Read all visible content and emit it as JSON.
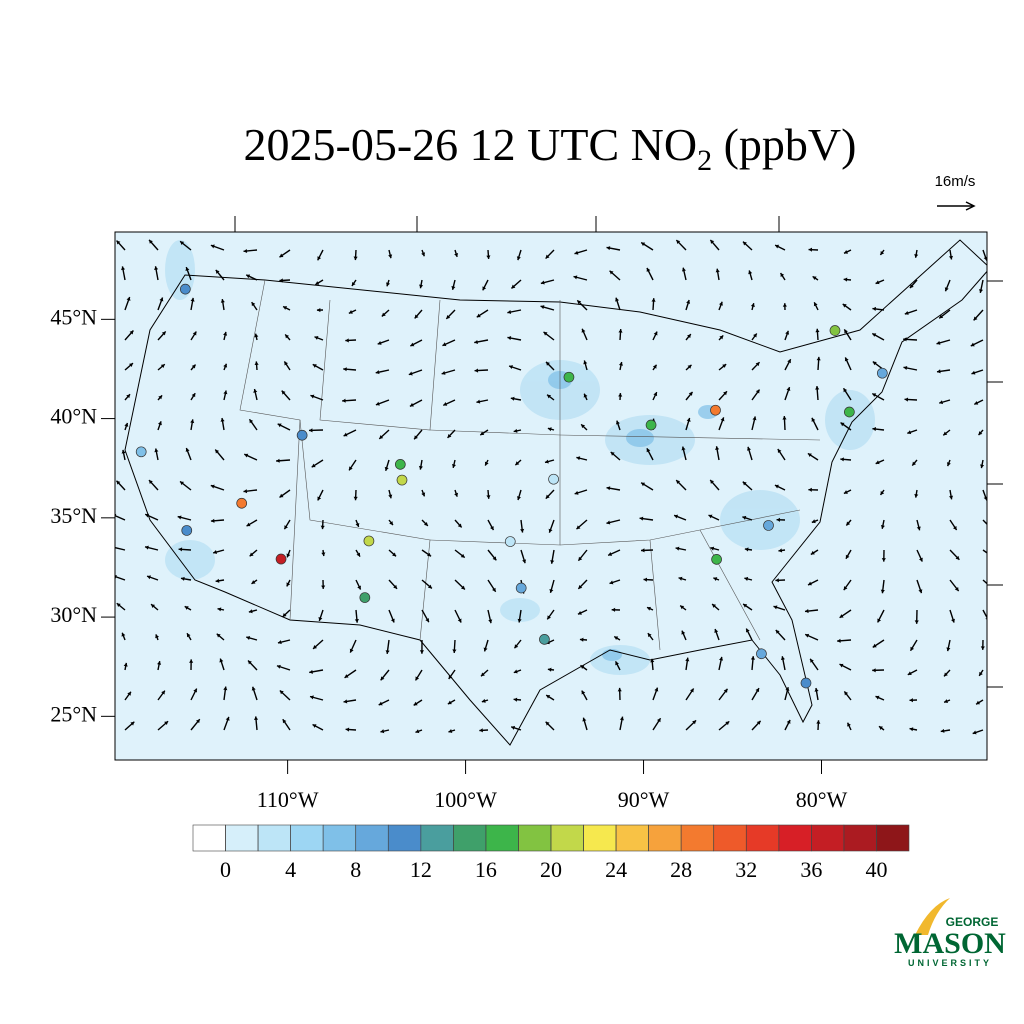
{
  "map": {
    "title": "2025-05-26 12 UTC NO",
    "title_subscript": "2",
    "title_suffix": "(ppbV)",
    "wind_reference": "16m/s",
    "xlim": [
      -119.7,
      -70.7
    ],
    "ylim": [
      22.8,
      49.4
    ],
    "xticks": [
      {
        "value": -110,
        "label": "110°W"
      },
      {
        "value": -100,
        "label": "100°W"
      },
      {
        "value": -90,
        "label": "90°W"
      },
      {
        "value": -80,
        "label": "80°W"
      }
    ],
    "yticks": [
      {
        "value": 25,
        "label": "25°N"
      },
      {
        "value": 30,
        "label": "30°N"
      },
      {
        "value": 35,
        "label": "35°N"
      },
      {
        "value": 40,
        "label": "40°N"
      },
      {
        "value": 45,
        "label": "45°N"
      }
    ],
    "colorbar": {
      "boundaries": [
        0,
        2,
        4,
        6,
        8,
        10,
        12,
        14,
        16,
        18,
        20,
        22,
        24,
        26,
        28,
        30,
        32,
        34,
        36,
        38,
        40
      ],
      "colors": [
        "#ffffff",
        "#d6effa",
        "#bde5f7",
        "#9dd6f3",
        "#7fc0e8",
        "#66a8dc",
        "#4a8ccb",
        "#4a9e9e",
        "#3fa06a",
        "#3db54a",
        "#82c341",
        "#c2d84a",
        "#f6e84e",
        "#f8c245",
        "#f6a23c",
        "#f37a2f",
        "#ee5a2a",
        "#e63a27",
        "#d71f26",
        "#c41e24",
        "#ab1b21",
        "#8e1619"
      ],
      "labels": [
        0,
        4,
        8,
        12,
        16,
        20,
        24,
        28,
        32,
        36,
        40
      ]
    },
    "stations": [
      {
        "lon": -118.2,
        "lat": 34.0,
        "value": 10
      },
      {
        "lon": -122.3,
        "lat": 37.8,
        "value": 6
      },
      {
        "lon": -122.3,
        "lat": 47.6,
        "value": 10
      },
      {
        "lon": -112.0,
        "lat": 33.4,
        "value": 36
      },
      {
        "lon": -115.1,
        "lat": 36.2,
        "value": 28
      },
      {
        "lon": -105.0,
        "lat": 39.7,
        "value": 16
      },
      {
        "lon": -111.9,
        "lat": 40.7,
        "value": 10
      },
      {
        "lon": -87.7,
        "lat": 41.9,
        "value": 16
      },
      {
        "lon": -83.1,
        "lat": 42.3,
        "value": 28
      },
      {
        "lon": -74.0,
        "lat": 40.7,
        "value": 16
      },
      {
        "lon": -84.4,
        "lat": 33.7,
        "value": 16
      },
      {
        "lon": -95.4,
        "lat": 29.8,
        "value": 12
      },
      {
        "lon": -96.8,
        "lat": 32.8,
        "value": 8
      },
      {
        "lon": -106.5,
        "lat": 31.8,
        "value": 14
      },
      {
        "lon": -93.3,
        "lat": 45.0,
        "value": 16
      },
      {
        "lon": -106.6,
        "lat": 35.1,
        "value": 20
      },
      {
        "lon": -71.1,
        "lat": 42.4,
        "value": 8
      },
      {
        "lon": -80.2,
        "lat": 25.8,
        "value": 10
      },
      {
        "lon": -82.5,
        "lat": 27.9,
        "value": 8
      },
      {
        "lon": -80.8,
        "lat": 35.2,
        "value": 8
      },
      {
        "lon": -94.6,
        "lat": 39.1,
        "value": 2
      },
      {
        "lon": -97.5,
        "lat": 35.5,
        "value": 2
      },
      {
        "lon": -73.6,
        "lat": 45.5,
        "value": 18
      },
      {
        "lon": -104.8,
        "lat": 38.8,
        "value": 20
      }
    ],
    "logo": {
      "top": "GEORGE",
      "main": "MASON",
      "bottom": "UNIVERSITY"
    }
  }
}
